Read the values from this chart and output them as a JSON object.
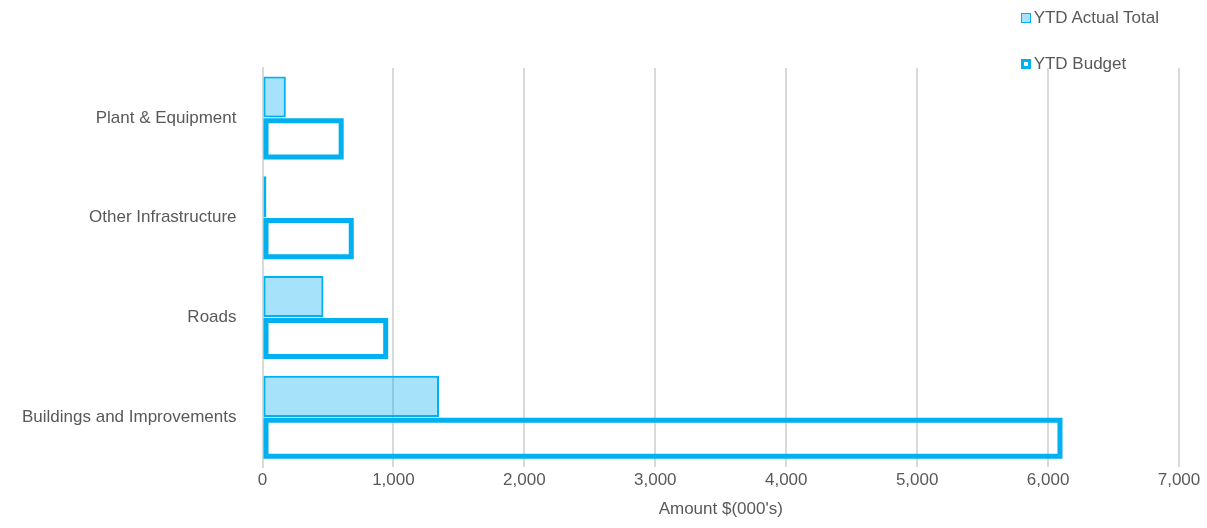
{
  "chart_data": {
    "type": "bar",
    "orientation": "horizontal",
    "xlabel": "Amount $(000's)",
    "categories": [
      "Plant & Equipment",
      "Other Infrastructure",
      "Roads",
      "Buildings and Improvements"
    ],
    "series": [
      {
        "name": "YTD Actual Total",
        "color": "#00b0f0",
        "values": [
          178,
          30,
          465,
          1348
        ]
      },
      {
        "name": "YTD Budget",
        "color": "#00b0f0",
        "values": [
          620,
          697,
          960,
          6110
        ]
      }
    ],
    "xlim": [
      0,
      7000
    ],
    "xticks": [
      {
        "value": 0,
        "label": "0"
      },
      {
        "value": 1000,
        "label": "1,000"
      },
      {
        "value": 2000,
        "label": "2,000"
      },
      {
        "value": 3000,
        "label": "3,000"
      },
      {
        "value": 4000,
        "label": "4,000"
      },
      {
        "value": 5000,
        "label": "5,000"
      },
      {
        "value": 6000,
        "label": "6,000"
      },
      {
        "value": 7000,
        "label": "7,000"
      }
    ],
    "grid": "x",
    "legend": "top right"
  }
}
